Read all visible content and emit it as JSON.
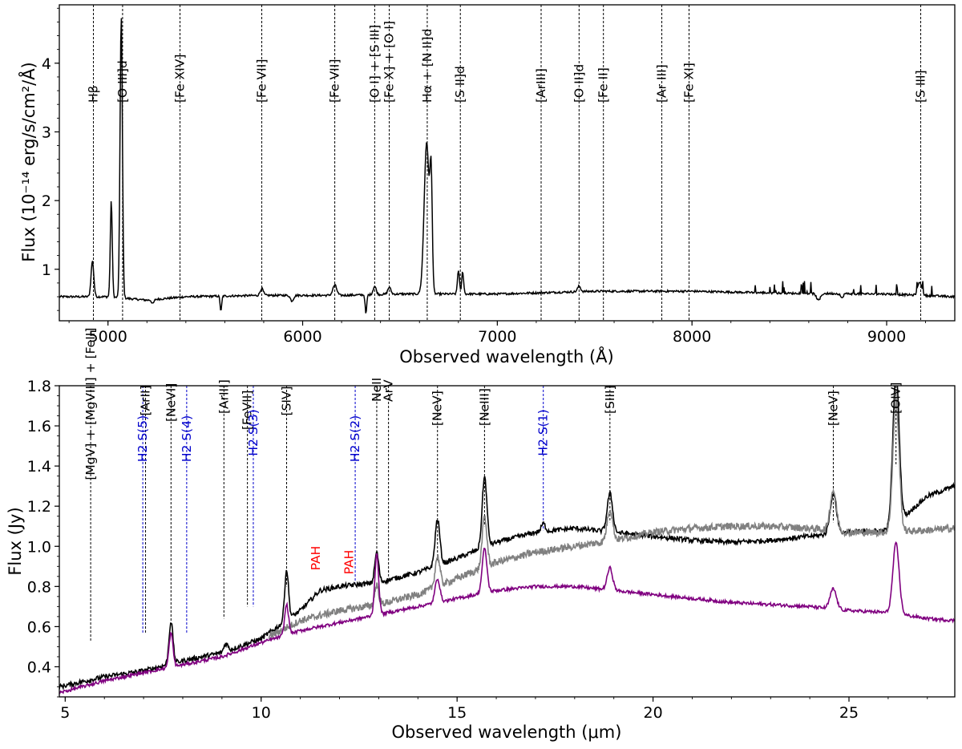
{
  "chart_data": [
    {
      "type": "line",
      "panel": "top",
      "title": "",
      "xlabel": "Observed wavelength (Å)",
      "ylabel": "Flux (10⁻¹⁴ erg/s/cm²/Å)",
      "xlim": [
        4750,
        9350
      ],
      "ylim": [
        0.25,
        4.85
      ],
      "xticks": [
        5000,
        6000,
        7000,
        8000,
        9000
      ],
      "yticks": [
        1,
        2,
        3,
        4
      ],
      "grid": false,
      "line_markers": [
        {
          "x": 4925,
          "label": "Hβ"
        },
        {
          "x": 5075,
          "label": "[O III]d"
        },
        {
          "x": 5370,
          "label": "[Fe XIV]"
        },
        {
          "x": 5790,
          "label": "[Fe VII]"
        },
        {
          "x": 6165,
          "label": "[Fe VII]"
        },
        {
          "x": 6370,
          "label": "[O I] + [S III]"
        },
        {
          "x": 6445,
          "label": "[Fe X] + [O I]"
        },
        {
          "x": 6640,
          "label": "Hα + [N II]d"
        },
        {
          "x": 6810,
          "label": "[S II]d"
        },
        {
          "x": 7225,
          "label": "[ArIII]"
        },
        {
          "x": 7420,
          "label": "[O II]d"
        },
        {
          "x": 7545,
          "label": "[Fe II]"
        },
        {
          "x": 7845,
          "label": "[Ar III]"
        },
        {
          "x": 7985,
          "label": "[Fe XI]"
        },
        {
          "x": 9175,
          "label": "[S III]"
        }
      ],
      "series": [
        {
          "name": "optical spectrum",
          "color": "#000000",
          "continuum": [
            [
              4750,
              0.6
            ],
            [
              5000,
              0.6
            ],
            [
              5200,
              0.55
            ],
            [
              5400,
              0.6
            ],
            [
              5800,
              0.62
            ],
            [
              6200,
              0.62
            ],
            [
              6500,
              0.64
            ],
            [
              7000,
              0.64
            ],
            [
              7500,
              0.68
            ],
            [
              8000,
              0.68
            ],
            [
              8500,
              0.65
            ],
            [
              9000,
              0.64
            ],
            [
              9350,
              0.6
            ]
          ],
          "lines": [
            {
              "center": 4920,
              "peak": 0.52,
              "width": 7
            },
            {
              "center": 5017,
              "peak": 1.4,
              "width": 5
            },
            {
              "center": 5068,
              "peak": 4.1,
              "width": 6
            },
            {
              "center": 5790,
              "peak": 0.1,
              "width": 8
            },
            {
              "center": 6165,
              "peak": 0.15,
              "width": 10
            },
            {
              "center": 6370,
              "peak": 0.12,
              "width": 8
            },
            {
              "center": 6445,
              "peak": 0.1,
              "width": 8
            },
            {
              "center": 6637,
              "peak": 2.2,
              "width": 13
            },
            {
              "center": 6660,
              "peak": 1.5,
              "width": 6
            },
            {
              "center": 6800,
              "peak": 0.35,
              "width": 5
            },
            {
              "center": 6822,
              "peak": 0.33,
              "width": 5
            },
            {
              "center": 7420,
              "peak": 0.08,
              "width": 8
            },
            {
              "center": 9170,
              "peak": 0.2,
              "width": 10
            }
          ],
          "absorptions": [
            {
              "center": 5580,
              "depth": 0.22,
              "width": 4
            },
            {
              "center": 6325,
              "depth": 0.28,
              "width": 4
            },
            {
              "center": 8650,
              "depth": 0.1,
              "width": 10
            },
            {
              "center": 8770,
              "depth": 0.07,
              "width": 6
            },
            {
              "center": 5945,
              "depth": 0.08,
              "width": 8
            },
            {
              "center": 5230,
              "depth": 0.06,
              "width": 6
            }
          ]
        }
      ]
    },
    {
      "type": "line",
      "panel": "bottom",
      "title": "",
      "xlabel": "Observed wavelength (μm)",
      "ylabel": "Flux (Jy)",
      "xlim": [
        4.85,
        27.7
      ],
      "ylim": [
        0.25,
        1.8
      ],
      "xticks": [
        5,
        10,
        15,
        20,
        25
      ],
      "yticks": [
        0.4,
        0.6,
        0.8,
        1.0,
        1.2,
        1.4,
        1.6,
        1.8
      ],
      "ytick_labels": [
        "0.4",
        "0.6",
        "0.8",
        "1.0",
        "1.2",
        "1.4",
        "1.6",
        "1.8"
      ],
      "grid": false,
      "line_markers": [
        {
          "x": 5.65,
          "label": "[MgV] + [MgVIII] + [FeII]",
          "color": "#000000",
          "style": "black"
        },
        {
          "x": 6.98,
          "label": "H2 S(5)",
          "color": "#0000cc",
          "style": "blue"
        },
        {
          "x": 7.05,
          "label": "[ArII]",
          "color": "#000000",
          "style": "black"
        },
        {
          "x": 7.7,
          "label": "[NeVI]",
          "color": "#000000",
          "style": "black"
        },
        {
          "x": 8.1,
          "label": "H2 S(4)",
          "color": "#0000cc",
          "style": "blue"
        },
        {
          "x": 9.05,
          "label": "[ArIII]",
          "color": "#000000",
          "style": "black"
        },
        {
          "x": 9.65,
          "label": "[FeVII]",
          "color": "#000000",
          "style": "black"
        },
        {
          "x": 9.8,
          "label": "H2 S(3)",
          "color": "#0000cc",
          "style": "blue"
        },
        {
          "x": 10.65,
          "label": "[SIV]",
          "color": "#000000",
          "style": "black"
        },
        {
          "x": 12.4,
          "label": "H2 S(2)",
          "color": "#0000cc",
          "style": "blue"
        },
        {
          "x": 12.95,
          "label": "NeII",
          "color": "#000000",
          "style": "black"
        },
        {
          "x": 13.25,
          "label": "ArV",
          "color": "#000000",
          "style": "black"
        },
        {
          "x": 14.5,
          "label": "[NeV]",
          "color": "#000000",
          "style": "black"
        },
        {
          "x": 15.7,
          "label": "[NeIII]",
          "color": "#000000",
          "style": "black"
        },
        {
          "x": 17.2,
          "label": "H2 S(1)",
          "color": "#0000cc",
          "style": "blue"
        },
        {
          "x": 18.9,
          "label": "[SIII]",
          "color": "#000000",
          "style": "black"
        },
        {
          "x": 24.6,
          "label": "[NeV]",
          "color": "#000000",
          "style": "black"
        },
        {
          "x": 26.2,
          "label": "[OIV]",
          "color": "#000000",
          "style": "black"
        }
      ],
      "annotations": [
        {
          "x": 11.4,
          "y": 0.88,
          "text": "PAH",
          "color": "#ff0000"
        },
        {
          "x": 12.25,
          "y": 0.86,
          "text": "PAH",
          "color": "#ff0000"
        }
      ],
      "series": [
        {
          "name": "black spectrum",
          "color": "#000000",
          "continuum": [
            [
              4.85,
              0.3
            ],
            [
              6,
              0.35
            ],
            [
              7,
              0.38
            ],
            [
              8,
              0.43
            ],
            [
              9,
              0.47
            ],
            [
              10,
              0.54
            ],
            [
              11,
              0.68
            ],
            [
              11.5,
              0.78
            ],
            [
              12,
              0.8
            ],
            [
              13,
              0.82
            ],
            [
              14,
              0.87
            ],
            [
              15,
              0.94
            ],
            [
              16,
              1.02
            ],
            [
              17,
              1.07
            ],
            [
              18,
              1.09
            ],
            [
              19,
              1.07
            ],
            [
              20,
              1.05
            ],
            [
              21,
              1.03
            ],
            [
              22,
              1.02
            ],
            [
              23,
              1.03
            ],
            [
              24,
              1.05
            ],
            [
              25,
              1.07
            ],
            [
              26,
              1.08
            ],
            [
              27,
              1.25
            ],
            [
              27.7,
              1.3
            ]
          ],
          "lines": [
            {
              "center": 7.7,
              "peak": 0.21,
              "width": 0.05
            },
            {
              "center": 9.1,
              "peak": 0.04,
              "width": 0.05
            },
            {
              "center": 10.65,
              "peak": 0.25,
              "width": 0.05
            },
            {
              "center": 12.95,
              "peak": 0.15,
              "width": 0.05
            },
            {
              "center": 14.5,
              "peak": 0.23,
              "width": 0.06
            },
            {
              "center": 15.7,
              "peak": 0.35,
              "width": 0.06
            },
            {
              "center": 17.2,
              "peak": 0.04,
              "width": 0.05
            },
            {
              "center": 18.9,
              "peak": 0.19,
              "width": 0.07
            },
            {
              "center": 24.6,
              "peak": 0.2,
              "width": 0.08
            },
            {
              "center": 26.2,
              "peak": 0.75,
              "width": 0.08
            }
          ],
          "noise": 0.012
        },
        {
          "name": "grey spectrum",
          "color": "#808080",
          "continuum": [
            [
              10.2,
              0.55
            ],
            [
              11,
              0.63
            ],
            [
              12,
              0.68
            ],
            [
              13,
              0.71
            ],
            [
              14,
              0.76
            ],
            [
              15,
              0.84
            ],
            [
              16,
              0.92
            ],
            [
              17,
              0.97
            ],
            [
              18,
              1.0
            ],
            [
              19,
              1.03
            ],
            [
              20,
              1.07
            ],
            [
              21,
              1.09
            ],
            [
              22,
              1.1
            ],
            [
              23,
              1.1
            ],
            [
              24,
              1.09
            ],
            [
              25,
              1.07
            ],
            [
              26,
              1.07
            ],
            [
              27,
              1.08
            ],
            [
              27.7,
              1.09
            ]
          ],
          "lines": [
            {
              "center": 12.95,
              "peak": 0.1,
              "width": 0.05
            },
            {
              "center": 14.5,
              "peak": 0.15,
              "width": 0.06
            },
            {
              "center": 15.7,
              "peak": 0.25,
              "width": 0.06
            },
            {
              "center": 18.9,
              "peak": 0.16,
              "width": 0.07
            },
            {
              "center": 24.6,
              "peak": 0.2,
              "width": 0.08
            },
            {
              "center": 26.2,
              "peak": 0.65,
              "width": 0.08
            }
          ],
          "noise": 0.018
        },
        {
          "name": "purple spectrum",
          "color": "#800080",
          "continuum": [
            [
              4.85,
              0.27
            ],
            [
              6,
              0.33
            ],
            [
              7,
              0.37
            ],
            [
              8,
              0.41
            ],
            [
              9,
              0.45
            ],
            [
              10,
              0.52
            ],
            [
              11,
              0.58
            ],
            [
              12,
              0.62
            ],
            [
              13,
              0.66
            ],
            [
              14,
              0.7
            ],
            [
              15,
              0.74
            ],
            [
              16,
              0.78
            ],
            [
              17,
              0.8
            ],
            [
              18,
              0.8
            ],
            [
              19,
              0.78
            ],
            [
              20,
              0.76
            ],
            [
              21,
              0.74
            ],
            [
              22,
              0.72
            ],
            [
              23,
              0.71
            ],
            [
              24,
              0.7
            ],
            [
              25,
              0.68
            ],
            [
              26,
              0.67
            ],
            [
              27,
              0.64
            ],
            [
              27.7,
              0.63
            ]
          ],
          "lines": [
            {
              "center": 7.7,
              "peak": 0.17,
              "width": 0.05
            },
            {
              "center": 10.65,
              "peak": 0.15,
              "width": 0.05
            },
            {
              "center": 12.95,
              "peak": 0.3,
              "width": 0.05
            },
            {
              "center": 14.5,
              "peak": 0.12,
              "width": 0.06
            },
            {
              "center": 15.7,
              "peak": 0.22,
              "width": 0.06
            },
            {
              "center": 18.9,
              "peak": 0.11,
              "width": 0.07
            },
            {
              "center": 24.6,
              "peak": 0.1,
              "width": 0.08
            },
            {
              "center": 26.2,
              "peak": 0.35,
              "width": 0.08
            }
          ],
          "noise": 0.008
        }
      ]
    }
  ]
}
